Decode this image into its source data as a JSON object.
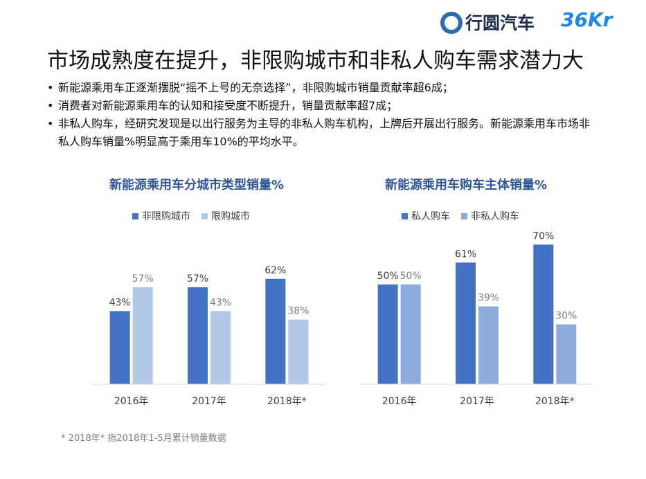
{
  "header": {
    "brand": "行圆汽车",
    "brand2": "36Kr",
    "title": "市场成熟度在提升，非限购城市和非私人购车需求潜力大"
  },
  "bullets": [
    "新能源乘用车正逐渐摆脱“摇不上号的无奈选择”，非限购城市销量贡献率超6成；",
    "消费者对新能源乘用车的认知和接受度不断提升，销量贡献率超7成；",
    "非私人购车，经研究发现是以出行服务为主导的非私人购车机构，上牌后开展出行服务。新能源乘用车市场非私人购车销量%明显高于乘用车10%的平均水平。"
  ],
  "footnote": "* 2018年* 指2018年1-5月累计销量数据",
  "chart_data": [
    {
      "type": "bar",
      "title": "新能源乘用车分城市类型销量%",
      "categories": [
        "2016年",
        "2017年",
        "2018年*"
      ],
      "series": [
        {
          "name": "非限购城市",
          "color": "#4472c4",
          "values": [
            43,
            57,
            62
          ],
          "value_labels": [
            "43%",
            "57%",
            "62%"
          ]
        },
        {
          "name": "限购城市",
          "color": "#b4c7e7",
          "values": [
            57,
            43,
            38
          ],
          "value_labels": [
            "57%",
            "43%",
            "38%"
          ]
        }
      ],
      "ylim": [
        0,
        90
      ]
    },
    {
      "type": "bar",
      "title": "新能源乘用车购车主体销量%",
      "categories": [
        "2016年",
        "2017年",
        "2018年*"
      ],
      "series": [
        {
          "name": "私人购车",
          "color": "#4472c4",
          "values": [
            50,
            61,
            70
          ],
          "value_labels": [
            "50%",
            "61%",
            "70%"
          ]
        },
        {
          "name": "非私人购车",
          "color": "#8faadc",
          "values": [
            50,
            39,
            30
          ],
          "value_labels": [
            "50%",
            "39%",
            "30%"
          ]
        }
      ],
      "ylim": [
        0,
        75
      ]
    }
  ]
}
